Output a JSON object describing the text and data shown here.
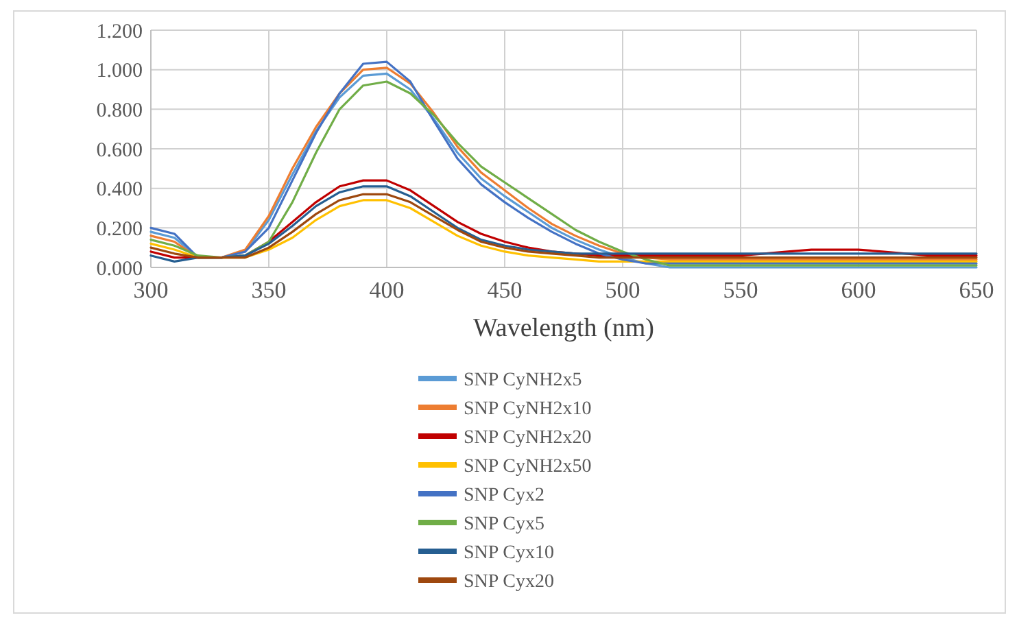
{
  "chart_data": {
    "type": "line",
    "xlabel": "Wavelength (nm)",
    "x": [
      300,
      310,
      320,
      330,
      340,
      350,
      360,
      370,
      380,
      390,
      400,
      410,
      420,
      430,
      440,
      450,
      460,
      470,
      480,
      490,
      500,
      510,
      520,
      530,
      540,
      550,
      560,
      570,
      580,
      590,
      600,
      610,
      620,
      630,
      640,
      650
    ],
    "xlim": [
      300,
      650
    ],
    "xticks": [
      300,
      350,
      400,
      450,
      500,
      550,
      600,
      650
    ],
    "ylim": [
      0,
      1.2
    ],
    "yticks": [
      {
        "value": 0,
        "label": "0.000"
      },
      {
        "value": 0.2,
        "label": "0.200"
      },
      {
        "value": 0.4,
        "label": "0.400"
      },
      {
        "value": 0.6,
        "label": "0.600"
      },
      {
        "value": 0.8,
        "label": "0.800"
      },
      {
        "value": 1,
        "label": "1.000"
      },
      {
        "value": 1.2,
        "label": "1.200"
      }
    ],
    "grid": true,
    "legend": "bottom",
    "marker": "none",
    "line_style": "solid",
    "series": [
      {
        "name": "SNP CyNH2x5",
        "color": "#5b9bd5",
        "values": [
          0.18,
          0.15,
          0.05,
          0.05,
          0.08,
          0.24,
          0.47,
          0.69,
          0.86,
          0.97,
          0.98,
          0.9,
          0.75,
          0.58,
          0.45,
          0.36,
          0.28,
          0.2,
          0.14,
          0.09,
          0.05,
          0.02,
          0.0,
          0.0,
          0.0,
          0.0,
          0.0,
          0.0,
          0.0,
          0.0,
          0.0,
          0.0,
          0.0,
          0.0,
          0.0,
          0.0
        ]
      },
      {
        "name": "SNP CyNH2x10",
        "color": "#ed7d31",
        "values": [
          0.16,
          0.13,
          0.05,
          0.05,
          0.09,
          0.26,
          0.5,
          0.71,
          0.88,
          1.0,
          1.01,
          0.93,
          0.78,
          0.61,
          0.48,
          0.39,
          0.3,
          0.22,
          0.16,
          0.11,
          0.07,
          0.05,
          0.04,
          0.04,
          0.04,
          0.04,
          0.04,
          0.04,
          0.04,
          0.04,
          0.04,
          0.04,
          0.04,
          0.04,
          0.04,
          0.04
        ]
      },
      {
        "name": "SNP CyNH2x20",
        "color": "#c00000",
        "values": [
          0.08,
          0.05,
          0.05,
          0.05,
          0.06,
          0.13,
          0.23,
          0.33,
          0.41,
          0.44,
          0.44,
          0.39,
          0.31,
          0.23,
          0.17,
          0.13,
          0.1,
          0.08,
          0.07,
          0.06,
          0.06,
          0.06,
          0.06,
          0.06,
          0.06,
          0.06,
          0.07,
          0.08,
          0.09,
          0.09,
          0.09,
          0.08,
          0.07,
          0.06,
          0.06,
          0.06
        ]
      },
      {
        "name": "SNP CyNH2x50",
        "color": "#ffc000",
        "values": [
          0.12,
          0.09,
          0.05,
          0.05,
          0.05,
          0.09,
          0.15,
          0.24,
          0.31,
          0.34,
          0.34,
          0.3,
          0.23,
          0.16,
          0.11,
          0.08,
          0.06,
          0.05,
          0.04,
          0.03,
          0.03,
          0.03,
          0.03,
          0.03,
          0.03,
          0.03,
          0.03,
          0.03,
          0.03,
          0.03,
          0.03,
          0.03,
          0.03,
          0.03,
          0.03,
          0.03
        ]
      },
      {
        "name": "SNP Cyx2",
        "color": "#4472c4",
        "values": [
          0.2,
          0.17,
          0.05,
          0.05,
          0.08,
          0.2,
          0.44,
          0.68,
          0.88,
          1.03,
          1.04,
          0.94,
          0.74,
          0.55,
          0.42,
          0.33,
          0.25,
          0.18,
          0.12,
          0.07,
          0.04,
          0.02,
          0.02,
          0.02,
          0.02,
          0.02,
          0.02,
          0.02,
          0.02,
          0.02,
          0.02,
          0.02,
          0.02,
          0.02,
          0.02,
          0.02
        ]
      },
      {
        "name": "SNP Cyx5",
        "color": "#70ad47",
        "values": [
          0.14,
          0.11,
          0.06,
          0.05,
          0.06,
          0.13,
          0.33,
          0.58,
          0.8,
          0.92,
          0.94,
          0.88,
          0.77,
          0.63,
          0.51,
          0.43,
          0.35,
          0.27,
          0.19,
          0.13,
          0.08,
          0.04,
          0.01,
          0.01,
          0.01,
          0.01,
          0.01,
          0.01,
          0.01,
          0.01,
          0.01,
          0.01,
          0.01,
          0.01,
          0.01,
          0.01
        ]
      },
      {
        "name": "SNP Cyx10",
        "color": "#255e91",
        "values": [
          0.06,
          0.03,
          0.05,
          0.05,
          0.06,
          0.12,
          0.21,
          0.31,
          0.38,
          0.41,
          0.41,
          0.36,
          0.28,
          0.2,
          0.14,
          0.11,
          0.09,
          0.08,
          0.07,
          0.07,
          0.07,
          0.07,
          0.07,
          0.07,
          0.07,
          0.07,
          0.07,
          0.07,
          0.07,
          0.07,
          0.07,
          0.07,
          0.07,
          0.07,
          0.07,
          0.07
        ]
      },
      {
        "name": "SNP Cyx20",
        "color": "#9e480e",
        "values": [
          0.1,
          0.07,
          0.05,
          0.05,
          0.05,
          0.1,
          0.18,
          0.27,
          0.34,
          0.37,
          0.37,
          0.33,
          0.26,
          0.19,
          0.13,
          0.1,
          0.08,
          0.07,
          0.06,
          0.05,
          0.05,
          0.05,
          0.05,
          0.05,
          0.05,
          0.05,
          0.05,
          0.05,
          0.05,
          0.05,
          0.05,
          0.05,
          0.05,
          0.05,
          0.05,
          0.05
        ]
      }
    ]
  }
}
